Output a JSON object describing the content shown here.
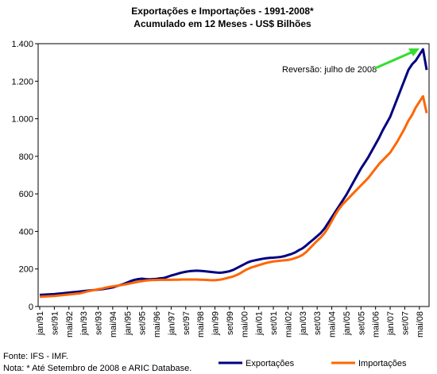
{
  "chart_data": {
    "type": "line",
    "title": "Exportações e Importações - 1991-2008*",
    "subtitle": "Acumulado em 12 Meses - US$ Bilhões",
    "categories": [
      "jan/91",
      null,
      null,
      null,
      "set/91",
      null,
      null,
      null,
      "mai/92",
      null,
      null,
      null,
      "jan/93",
      null,
      null,
      null,
      "set/93",
      null,
      null,
      null,
      "mai/94",
      null,
      null,
      null,
      "jan/95",
      null,
      null,
      null,
      "set/95",
      null,
      null,
      null,
      "mai/96",
      null,
      null,
      null,
      "jan/97",
      null,
      null,
      null,
      "set/97",
      null,
      null,
      null,
      "mai/98",
      null,
      null,
      null,
      "jan/99",
      null,
      null,
      null,
      "set/99",
      null,
      null,
      null,
      "mai/00",
      null,
      null,
      null,
      "jan/01",
      null,
      null,
      null,
      "set/01",
      null,
      null,
      null,
      "mai/02",
      null,
      null,
      null,
      "jan/03",
      null,
      null,
      null,
      "set/03",
      null,
      null,
      null,
      "mai/04",
      null,
      null,
      null,
      "jan/05",
      null,
      null,
      null,
      "set/05",
      null,
      null,
      null,
      "mai/06",
      null,
      null,
      null,
      "jan/07",
      null,
      null,
      null,
      "set/07",
      null,
      null,
      null,
      "mai/08",
      null,
      null
    ],
    "series": [
      {
        "name": "Exportações",
        "color": "#000080",
        "values": [
          62,
          63,
          64,
          65,
          66,
          68,
          70,
          72,
          74,
          76,
          78,
          80,
          82,
          84,
          86,
          88,
          90,
          92,
          95,
          98,
          102,
          108,
          114,
          120,
          128,
          136,
          142,
          146,
          148,
          146,
          145,
          146,
          147,
          150,
          152,
          158,
          165,
          170,
          176,
          181,
          185,
          188,
          190,
          191,
          190,
          188,
          186,
          184,
          182,
          180,
          181,
          184,
          188,
          195,
          205,
          215,
          225,
          235,
          242,
          246,
          250,
          254,
          257,
          259,
          260,
          262,
          264,
          268,
          274,
          280,
          288,
          300,
          310,
          325,
          342,
          358,
          375,
          392,
          415,
          445,
          475,
          505,
          535,
          565,
          595,
          630,
          665,
          700,
          735,
          765,
          795,
          830,
          865,
          900,
          940,
          975,
          1010,
          1060,
          1110,
          1160,
          1210,
          1260,
          1290,
          1310,
          1340,
          1370,
          1260
        ]
      },
      {
        "name": "Importações",
        "color": "#ff6600",
        "values": [
          52,
          53,
          54,
          55,
          56,
          58,
          60,
          62,
          64,
          66,
          68,
          70,
          75,
          80,
          84,
          88,
          92,
          95,
          100,
          104,
          107,
          110,
          113,
          116,
          120,
          124,
          128,
          132,
          135,
          138,
          140,
          141,
          141,
          142,
          142,
          142,
          142,
          143,
          143,
          144,
          144,
          144,
          144,
          144,
          143,
          142,
          141,
          140,
          140,
          142,
          145,
          150,
          155,
          160,
          168,
          178,
          190,
          200,
          208,
          214,
          220,
          226,
          232,
          236,
          240,
          242,
          244,
          246,
          248,
          252,
          258,
          265,
          275,
          290,
          310,
          330,
          350,
          368,
          390,
          420,
          455,
          490,
          520,
          545,
          565,
          585,
          605,
          625,
          645,
          665,
          685,
          710,
          735,
          760,
          780,
          800,
          820,
          850,
          880,
          915,
          950,
          990,
          1020,
          1060,
          1090,
          1120,
          1030
        ]
      }
    ],
    "ylim": [
      0,
      1400
    ],
    "yticks": [
      0,
      200,
      400,
      600,
      800,
      {
        "value": 1000,
        "label": "1.000"
      },
      {
        "value": 1200,
        "label": "1.200"
      },
      {
        "value": 1400,
        "label": "1.400"
      }
    ],
    "annotation": "Reversão: julho de 2008",
    "source": "Fonte: IFS - IMF.",
    "note": "Nota: * Até Setembro de 2008 e ARIC Database."
  }
}
